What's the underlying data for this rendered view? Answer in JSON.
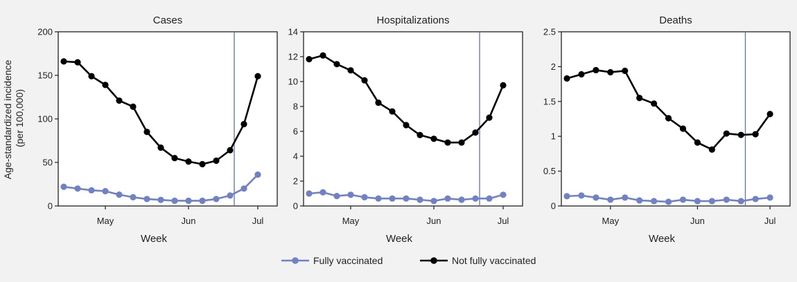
{
  "y_axis_label": [
    "Age-standardized incidence",
    "(per 100,000)"
  ],
  "legend": [
    {
      "label": "Fully vaccinated",
      "color": "#6f82c6"
    },
    {
      "label": "Not fully vaccinated",
      "color": "#000000"
    }
  ],
  "colors": {
    "vaccinated": "#6f82c6",
    "unvaccinated": "#000000",
    "reference_line": "#5e6fbf",
    "background": "#f2f2f2",
    "plot_background": "#ffffff"
  },
  "chart_data": [
    {
      "type": "line",
      "title": "Cases",
      "xlabel": "Week",
      "ylabel": "Age-standardized incidence (per 100,000)",
      "ylim": [
        0,
        200
      ],
      "yticks": [
        0,
        50,
        100,
        150,
        200
      ],
      "xticks": [
        {
          "label": "May",
          "index": 3
        },
        {
          "label": "Jun",
          "index": 9
        },
        {
          "label": "Jul",
          "index": 14
        }
      ],
      "reference_line_index": 12.3,
      "grid": false,
      "legend_position": "bottom",
      "x": [
        0,
        1,
        2,
        3,
        4,
        5,
        6,
        7,
        8,
        9,
        10,
        11,
        12,
        13,
        14,
        15
      ],
      "series": [
        {
          "name": "Not fully vaccinated",
          "values": [
            166,
            165,
            149,
            139,
            121,
            114,
            85,
            67,
            55,
            51,
            48,
            52,
            64,
            94,
            149,
            149
          ]
        },
        {
          "name": "Fully vaccinated",
          "values": [
            22,
            20,
            18,
            17,
            13,
            10,
            8,
            7,
            6,
            6,
            6,
            8,
            12,
            20,
            36,
            36
          ]
        }
      ]
    },
    {
      "type": "line",
      "title": "Hospitalizations",
      "xlabel": "Week",
      "ylabel": "",
      "ylim": [
        0,
        14
      ],
      "yticks": [
        0,
        2,
        4,
        6,
        8,
        10,
        12,
        14
      ],
      "xticks": [
        {
          "label": "May",
          "index": 3
        },
        {
          "label": "Jun",
          "index": 9
        },
        {
          "label": "Jul",
          "index": 14
        }
      ],
      "reference_line_index": 12.3,
      "grid": false,
      "legend_position": "bottom",
      "x": [
        0,
        1,
        2,
        3,
        4,
        5,
        6,
        7,
        8,
        9,
        10,
        11,
        12,
        13,
        14,
        15
      ],
      "series": [
        {
          "name": "Not fully vaccinated",
          "values": [
            11.8,
            12.1,
            11.4,
            10.9,
            10.1,
            8.3,
            7.6,
            6.5,
            5.7,
            5.4,
            5.1,
            5.1,
            5.9,
            7.1,
            9.7,
            9.7
          ]
        },
        {
          "name": "Fully vaccinated",
          "values": [
            1.0,
            1.1,
            0.8,
            0.9,
            0.7,
            0.6,
            0.6,
            0.6,
            0.5,
            0.4,
            0.6,
            0.5,
            0.6,
            0.6,
            0.9,
            0.9
          ]
        }
      ]
    },
    {
      "type": "line",
      "title": "Deaths",
      "xlabel": "Week",
      "ylabel": "",
      "ylim": [
        0,
        2.5
      ],
      "yticks": [
        0,
        0.5,
        1,
        1.5,
        2,
        2.5
      ],
      "xticks": [
        {
          "label": "May",
          "index": 3
        },
        {
          "label": "Jun",
          "index": 9
        },
        {
          "label": "Jul",
          "index": 14
        }
      ],
      "reference_line_index": 12.3,
      "grid": false,
      "legend_position": "bottom",
      "x": [
        0,
        1,
        2,
        3,
        4,
        5,
        6,
        7,
        8,
        9,
        10,
        11,
        12,
        13,
        14,
        15
      ],
      "series": [
        {
          "name": "Not fully vaccinated",
          "values": [
            1.83,
            1.89,
            1.95,
            1.92,
            1.94,
            1.55,
            1.47,
            1.26,
            1.11,
            0.91,
            0.81,
            1.04,
            1.02,
            1.03,
            1.32,
            1.32
          ]
        },
        {
          "name": "Fully vaccinated",
          "values": [
            0.14,
            0.15,
            0.12,
            0.09,
            0.12,
            0.08,
            0.07,
            0.06,
            0.09,
            0.07,
            0.07,
            0.09,
            0.07,
            0.1,
            0.12,
            0.12
          ]
        }
      ]
    }
  ]
}
